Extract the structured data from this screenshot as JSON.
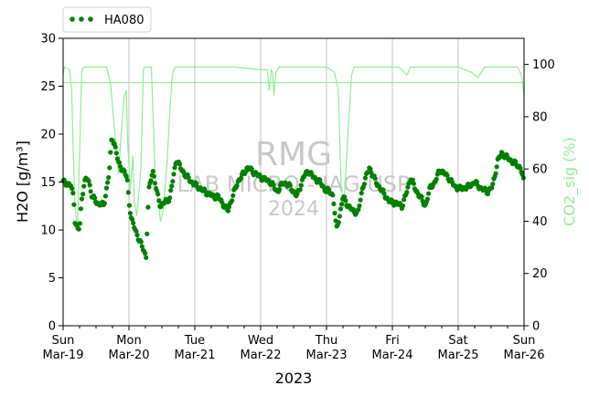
{
  "chart_data": {
    "type": "line",
    "xlabel": "2023",
    "ylabel": "H2O [g/m³]",
    "y2label": "CO2_sig (%)",
    "ylim": [
      0,
      30
    ],
    "y2lim": [
      0,
      110
    ],
    "grid": "vertical-days",
    "legend": {
      "position": "top-left",
      "label": "HA080"
    },
    "watermark": {
      "line1": "RMG",
      "line2": "LAB MICRO - IAG USP",
      "line3": "2024"
    },
    "colors": {
      "h2o": "#008000",
      "co2": "#90ee90",
      "watermark": "#c8c8c8"
    },
    "y_ticks": [
      "0",
      "5",
      "10",
      "15",
      "20",
      "25",
      "30"
    ],
    "y2_ticks": [
      "0",
      "20",
      "40",
      "60",
      "80",
      "100"
    ],
    "x_ticks": [
      {
        "day": "Sun",
        "date": "Mar-19"
      },
      {
        "day": "Mon",
        "date": "Mar-20"
      },
      {
        "day": "Tue",
        "date": "Mar-21"
      },
      {
        "day": "Wed",
        "date": "Mar-22"
      },
      {
        "day": "Thu",
        "date": "Mar-23"
      },
      {
        "day": "Fri",
        "date": "Mar-24"
      },
      {
        "day": "Sat",
        "date": "Mar-25"
      },
      {
        "day": "Sun",
        "date": "Mar-26"
      }
    ],
    "x_range_days": [
      0,
      7
    ],
    "h2o_keypoints": [
      [
        0.0,
        15.0
      ],
      [
        0.05,
        14.9
      ],
      [
        0.12,
        14.6
      ],
      [
        0.16,
        13.4
      ],
      [
        0.18,
        11.0
      ],
      [
        0.22,
        10.0
      ],
      [
        0.25,
        10.2
      ],
      [
        0.28,
        13.0
      ],
      [
        0.32,
        15.0
      ],
      [
        0.38,
        15.4
      ],
      [
        0.44,
        13.5
      ],
      [
        0.52,
        12.8
      ],
      [
        0.62,
        12.6
      ],
      [
        0.7,
        16.0
      ],
      [
        0.74,
        19.7
      ],
      [
        0.78,
        19.0
      ],
      [
        0.84,
        17.0
      ],
      [
        0.92,
        16.1
      ],
      [
        0.97,
        15.5
      ],
      [
        1.0,
        13.0
      ],
      [
        1.04,
        11.0
      ],
      [
        1.1,
        10.0
      ],
      [
        1.15,
        9.0
      ],
      [
        1.22,
        8.0
      ],
      [
        1.26,
        7.2
      ],
      [
        1.3,
        14.0
      ],
      [
        1.36,
        16.3
      ],
      [
        1.42,
        14.0
      ],
      [
        1.48,
        12.5
      ],
      [
        1.56,
        13.0
      ],
      [
        1.62,
        13.3
      ],
      [
        1.72,
        17.4
      ],
      [
        1.78,
        16.5
      ],
      [
        1.85,
        15.8
      ],
      [
        1.95,
        15.0
      ],
      [
        2.05,
        14.5
      ],
      [
        2.15,
        14.0
      ],
      [
        2.28,
        13.5
      ],
      [
        2.35,
        13.5
      ],
      [
        2.45,
        12.5
      ],
      [
        2.5,
        12.0
      ],
      [
        2.55,
        13.0
      ],
      [
        2.65,
        15.0
      ],
      [
        2.8,
        16.5
      ],
      [
        2.9,
        16.0
      ],
      [
        3.0,
        15.5
      ],
      [
        3.15,
        15.0
      ],
      [
        3.25,
        14.0
      ],
      [
        3.35,
        15.0
      ],
      [
        3.45,
        14.5
      ],
      [
        3.55,
        13.5
      ],
      [
        3.65,
        15.5
      ],
      [
        3.72,
        16.2
      ],
      [
        3.8,
        15.5
      ],
      [
        3.9,
        15.0
      ],
      [
        3.98,
        14.2
      ],
      [
        4.05,
        14.0
      ],
      [
        4.1,
        13.6
      ],
      [
        4.15,
        10.0
      ],
      [
        4.2,
        11.5
      ],
      [
        4.25,
        13.5
      ],
      [
        4.33,
        12.5
      ],
      [
        4.4,
        12.0
      ],
      [
        4.48,
        11.8
      ],
      [
        4.55,
        14.5
      ],
      [
        4.65,
        16.5
      ],
      [
        4.75,
        15.0
      ],
      [
        4.85,
        14.0
      ],
      [
        4.95,
        13.0
      ],
      [
        5.05,
        12.8
      ],
      [
        5.15,
        12.5
      ],
      [
        5.22,
        14.0
      ],
      [
        5.28,
        15.5
      ],
      [
        5.35,
        14.2
      ],
      [
        5.42,
        13.5
      ],
      [
        5.5,
        12.5
      ],
      [
        5.58,
        14.5
      ],
      [
        5.65,
        15.0
      ],
      [
        5.72,
        16.3
      ],
      [
        5.85,
        15.5
      ],
      [
        5.95,
        14.5
      ],
      [
        6.05,
        14.3
      ],
      [
        6.15,
        14.5
      ],
      [
        6.25,
        15.0
      ],
      [
        6.35,
        14.3
      ],
      [
        6.45,
        14.0
      ],
      [
        6.52,
        14.5
      ],
      [
        6.6,
        17.2
      ],
      [
        6.66,
        18.0
      ],
      [
        6.75,
        17.5
      ],
      [
        6.85,
        17.0
      ],
      [
        6.95,
        16.5
      ],
      [
        7.0,
        14.8
      ]
    ],
    "co2_keypoints": [
      [
        0.0,
        96
      ],
      [
        0.02,
        99
      ],
      [
        0.1,
        98
      ],
      [
        0.13,
        90
      ],
      [
        0.15,
        70
      ],
      [
        0.18,
        45
      ],
      [
        0.22,
        38
      ],
      [
        0.26,
        75
      ],
      [
        0.28,
        97
      ],
      [
        0.31,
        99
      ],
      [
        0.4,
        99
      ],
      [
        0.55,
        99
      ],
      [
        0.66,
        99
      ],
      [
        0.72,
        93
      ],
      [
        0.78,
        75
      ],
      [
        0.84,
        58
      ],
      [
        0.9,
        80
      ],
      [
        0.93,
        88
      ],
      [
        0.96,
        90
      ],
      [
        0.98,
        70
      ],
      [
        1.02,
        52
      ],
      [
        1.06,
        65
      ],
      [
        1.08,
        48
      ],
      [
        1.12,
        42
      ],
      [
        1.18,
        60
      ],
      [
        1.22,
        98
      ],
      [
        1.24,
        99
      ],
      [
        1.34,
        99
      ],
      [
        1.4,
        56
      ],
      [
        1.48,
        40
      ],
      [
        1.52,
        44
      ],
      [
        1.58,
        63
      ],
      [
        1.62,
        82
      ],
      [
        1.66,
        96
      ],
      [
        1.7,
        99
      ],
      [
        2.2,
        99
      ],
      [
        2.6,
        99
      ],
      [
        3.0,
        98
      ],
      [
        3.1,
        98
      ],
      [
        3.13,
        90
      ],
      [
        3.16,
        98
      ],
      [
        3.18,
        97
      ],
      [
        3.2,
        88
      ],
      [
        3.23,
        97
      ],
      [
        3.28,
        99
      ],
      [
        3.6,
        99
      ],
      [
        4.0,
        99
      ],
      [
        4.12,
        97
      ],
      [
        4.18,
        90
      ],
      [
        4.22,
        55
      ],
      [
        4.26,
        45
      ],
      [
        4.3,
        62
      ],
      [
        4.34,
        80
      ],
      [
        4.38,
        96
      ],
      [
        4.42,
        99
      ],
      [
        4.8,
        99
      ],
      [
        5.1,
        99
      ],
      [
        5.22,
        96
      ],
      [
        5.28,
        99
      ],
      [
        5.6,
        99
      ],
      [
        6.0,
        99
      ],
      [
        6.2,
        97
      ],
      [
        6.3,
        95
      ],
      [
        6.4,
        99
      ],
      [
        6.7,
        99
      ],
      [
        6.9,
        99
      ],
      [
        6.96,
        96
      ],
      [
        7.0,
        88
      ]
    ],
    "co2_reference_line": 93
  }
}
